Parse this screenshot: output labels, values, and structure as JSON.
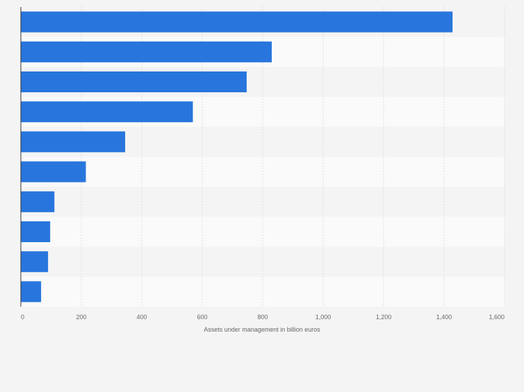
{
  "colors": {
    "background": "#f4f4f4",
    "band_dark": "#f4f4f4",
    "band_light": "#fafafa",
    "bar": "#2876dd",
    "grid": "#dcdcdc",
    "axis": "#333333",
    "tick_text": "#666666"
  },
  "chart_data": {
    "type": "bar",
    "orientation": "horizontal",
    "title": "",
    "xlabel": "Assets under management in billion euros",
    "ylabel": "",
    "xlim": [
      0,
      1600
    ],
    "x_ticks": [
      0,
      200,
      400,
      600,
      800,
      1000,
      1200,
      1400,
      1600
    ],
    "x_tick_labels": [
      "0",
      "200",
      "400",
      "600",
      "800",
      "1,000",
      "1,200",
      "1,400",
      "1,600"
    ],
    "grid": true,
    "categories": [
      "",
      "",
      "",
      "",
      "",
      "",
      "",
      "",
      "",
      ""
    ],
    "values": [
      1428,
      830,
      747,
      569,
      345,
      215,
      111,
      97,
      90,
      67
    ]
  }
}
